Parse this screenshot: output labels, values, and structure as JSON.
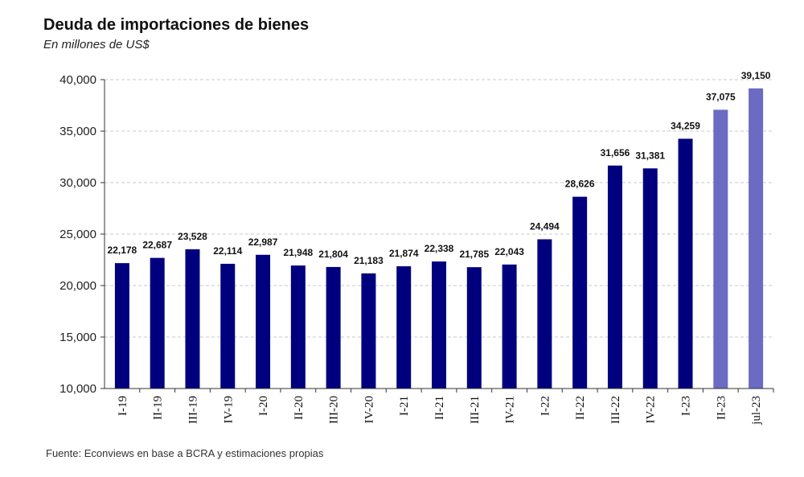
{
  "chart_data": {
    "type": "bar",
    "title": "Deuda de importaciones de bienes",
    "subtitle": "En millones de US$",
    "source": "Fuente: Econviews en base a BCRA y estimaciones propias",
    "xlabel": "",
    "ylabel": "",
    "ylim": [
      10000,
      40000
    ],
    "yticks": [
      10000,
      15000,
      20000,
      25000,
      30000,
      35000,
      40000
    ],
    "ytick_labels": [
      "10,000",
      "15,000",
      "20,000",
      "25,000",
      "30,000",
      "35,000",
      "40,000"
    ],
    "grid": true,
    "categories": [
      "I-19",
      "II-19",
      "III-19",
      "IV-19",
      "I-20",
      "II-20",
      "III-20",
      "IV-20",
      "I-21",
      "II-21",
      "III-21",
      "IV-21",
      "I-22",
      "II-22",
      "III-22",
      "IV-22",
      "I-23",
      "II-23",
      "jul-23"
    ],
    "values": [
      22178,
      22687,
      23528,
      22114,
      22987,
      21948,
      21804,
      21183,
      21874,
      22338,
      21785,
      22043,
      24494,
      28626,
      31656,
      31381,
      34259,
      37075,
      39150
    ],
    "value_labels": [
      "22,178",
      "22,687",
      "23,528",
      "22,114",
      "22,987",
      "21,948",
      "21,804",
      "21,183",
      "21,874",
      "22,338",
      "21,785",
      "22,043",
      "24,494",
      "28,626",
      "31,656",
      "31,381",
      "34,259",
      "37,075",
      "39,150"
    ],
    "estimated": [
      false,
      false,
      false,
      false,
      false,
      false,
      false,
      false,
      false,
      false,
      false,
      false,
      false,
      false,
      false,
      false,
      false,
      true,
      true
    ],
    "colors": {
      "actual": "#00007f",
      "estimated": "#6b6bc4",
      "grid": "#c8c8c8",
      "axis": "#333333"
    }
  }
}
